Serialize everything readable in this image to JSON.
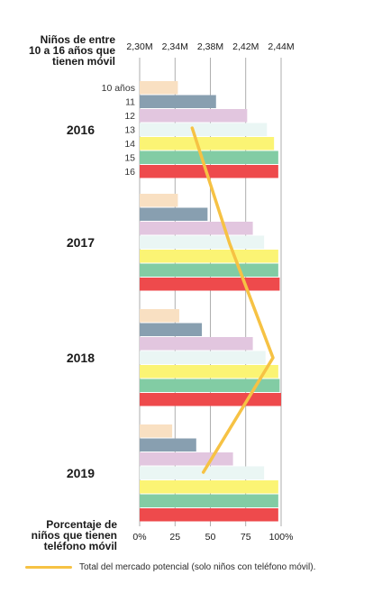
{
  "chart_data": {
    "type": "bar",
    "top_axis_title": [
      "Niños de entre",
      "10 a 16 años que",
      "tienen móvil"
    ],
    "bottom_axis_title": [
      "Porcentaje de",
      "niños que tienen",
      "teléfono móvil"
    ],
    "top_axis_ticks": [
      "2,30M",
      "2,34M",
      "2,38M",
      "2,42M",
      "2,44M"
    ],
    "bottom_axis_ticks": [
      "0%",
      "25",
      "50",
      "75",
      "100%"
    ],
    "xlim": [
      0,
      100
    ],
    "age_labels": [
      "10 años",
      "11",
      "12",
      "13",
      "14",
      "15",
      "16"
    ],
    "series_colors": [
      "#F9E0C2",
      "#889FB0",
      "#E2C6DF",
      "#EAF6F4",
      "#FBF474",
      "#82CCA4",
      "#EE4A4C"
    ],
    "groups": [
      {
        "year": "2016",
        "values": [
          27,
          54,
          76,
          90,
          95,
          98,
          98
        ]
      },
      {
        "year": "2017",
        "values": [
          27,
          48,
          80,
          88,
          98,
          98,
          99
        ]
      },
      {
        "year": "2018",
        "values": [
          28,
          44,
          80,
          89,
          98,
          99,
          100
        ]
      },
      {
        "year": "2019",
        "values": [
          23,
          40,
          66,
          88,
          98,
          98,
          98
        ]
      }
    ],
    "line_series": {
      "name": "Total del mercado potencial (solo niños con teléfono móvil).",
      "values": [
        2.352,
        2.389,
        2.432,
        2.363
      ]
    },
    "line_axis_range": [
      2.3,
      2.44
    ],
    "colors": {
      "line": "#F6C244",
      "grid": "#9a9a9a",
      "text": "#1a1a1a"
    }
  }
}
